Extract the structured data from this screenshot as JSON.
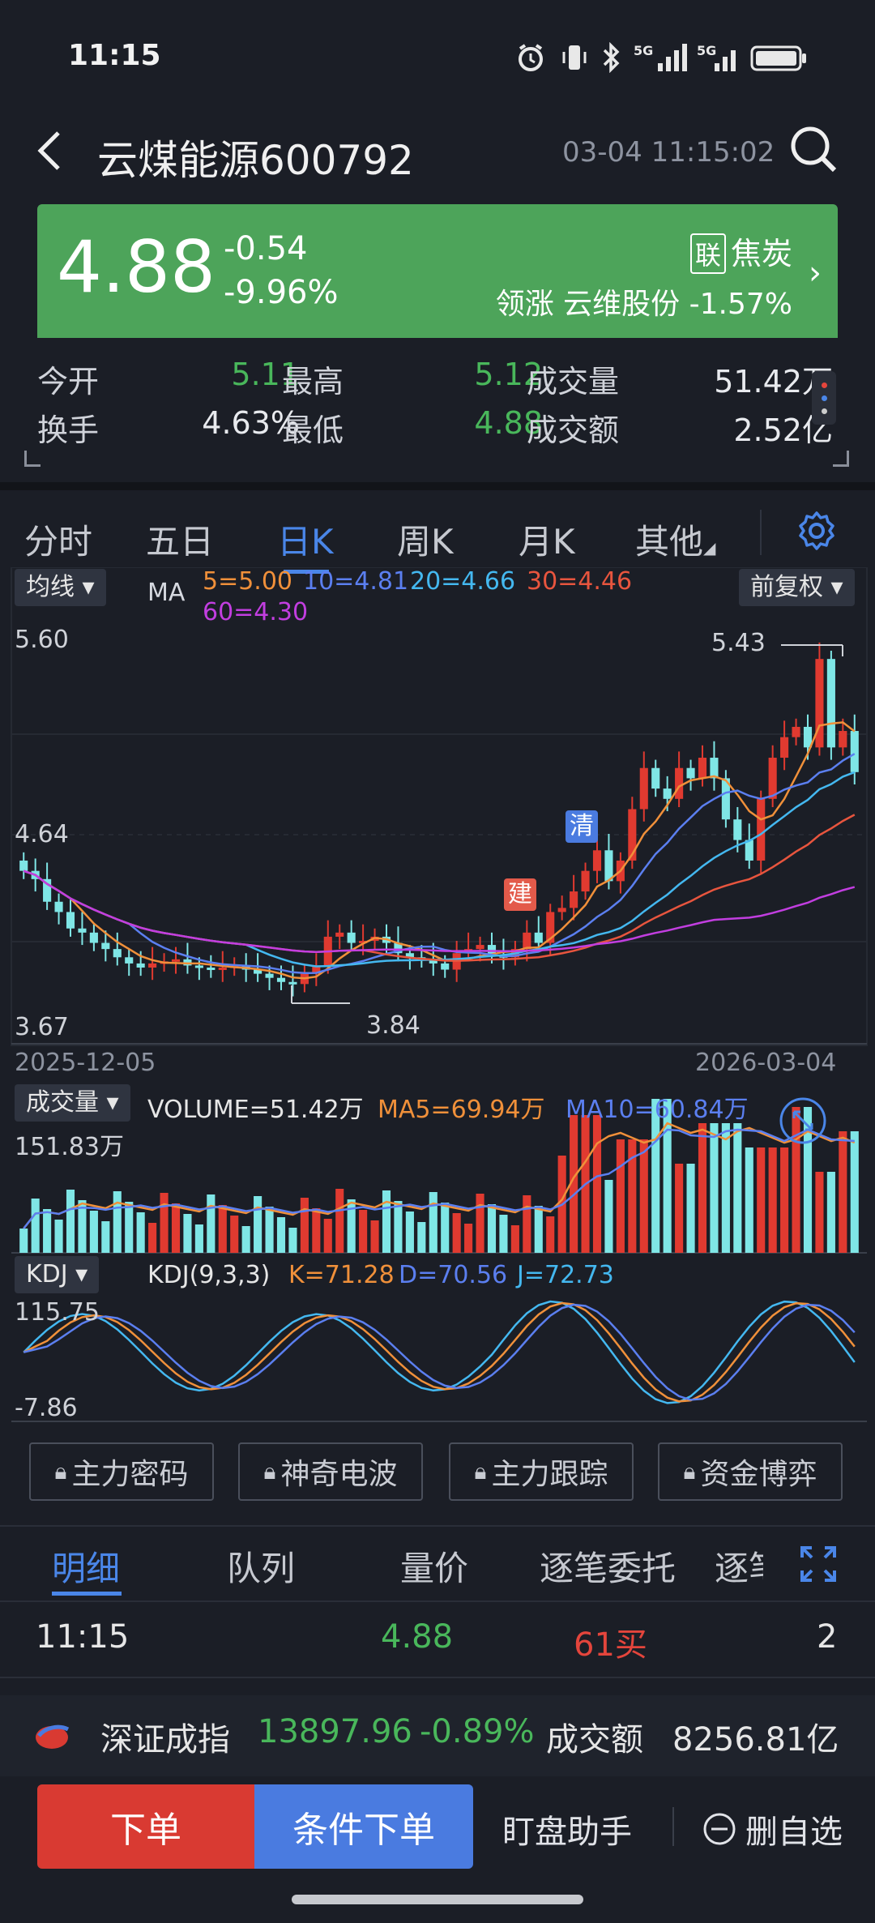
{
  "status_bar": {
    "time": "11:15",
    "net1": "5G",
    "net2": "5G"
  },
  "header": {
    "title": "云煤能源600792",
    "datetime": "03-04 11:15:02"
  },
  "quote": {
    "price": "4.88",
    "change": "-0.54",
    "change_pct": "-9.96%",
    "sector_badge": "联",
    "sector": "焦炭",
    "lead_label": "领涨",
    "lead_stock": "云维股份",
    "lead_pct": "-1.57%"
  },
  "stats": {
    "open_label": "今开",
    "open": "5.11",
    "high_label": "最高",
    "high": "5.12",
    "volume_label": "成交量",
    "volume": "51.42万",
    "turnover_label": "换手",
    "turnover": "4.63%",
    "low_label": "最低",
    "low": "4.88",
    "amount_label": "成交额",
    "amount": "2.52亿"
  },
  "ktabs": [
    "分时",
    "五日",
    "日K",
    "周K",
    "月K",
    "其他"
  ],
  "chart": {
    "ma_dropdown": "均线",
    "ma_label": "MA",
    "ma5": "5=5.00",
    "ma10": "10=4.81",
    "ma20": "20=4.66",
    "ma30": "30=4.46",
    "ma60": "60=4.30",
    "adj_dropdown": "前复权",
    "y_top": "5.60",
    "y_mid": "4.64",
    "y_bot": "3.67",
    "max_label": "5.43",
    "min_label": "3.84",
    "date_start": "2025-12-05",
    "date_end": "2026-03-04",
    "marker_jian": "建",
    "marker_qing": "清",
    "vol_dropdown": "成交量",
    "vol_value": "VOLUME=51.42万",
    "vol_ma5": "MA5=69.94万",
    "vol_ma10": "MA10=60.84万",
    "vol_top": "151.83万",
    "kdj_dropdown": "KDJ",
    "kdj_label": "KDJ(9,3,3)",
    "kdj_k": "K=71.28",
    "kdj_d": "D=70.56",
    "kdj_j": "J=72.73",
    "kdj_top": "115.75",
    "kdj_bot": "-7.86",
    "colors": {
      "ma5": "#f0903a",
      "ma10": "#5b7ff0",
      "ma20": "#44b8f0",
      "ma30": "#e8553e",
      "ma60": "#c23ee0",
      "up": "#e03a30",
      "down": "#7fe6e6"
    }
  },
  "tools": [
    "主力密码",
    "神奇电波",
    "主力跟踪",
    "资金博弈"
  ],
  "detail_tabs": [
    "明细",
    "队列",
    "量价",
    "逐笔委托",
    "逐笔"
  ],
  "trade": {
    "time": "11:15",
    "price": "4.88",
    "vol": "61买",
    "count": "2"
  },
  "index": {
    "name": "深证成指",
    "value": "13897.96",
    "pct": "-0.89%",
    "amount_label": "成交额",
    "amount": "8256.81亿"
  },
  "actions": {
    "order": "下单",
    "cond_order": "条件下单",
    "monitor": "盯盘助手",
    "remove": "删自选"
  }
}
